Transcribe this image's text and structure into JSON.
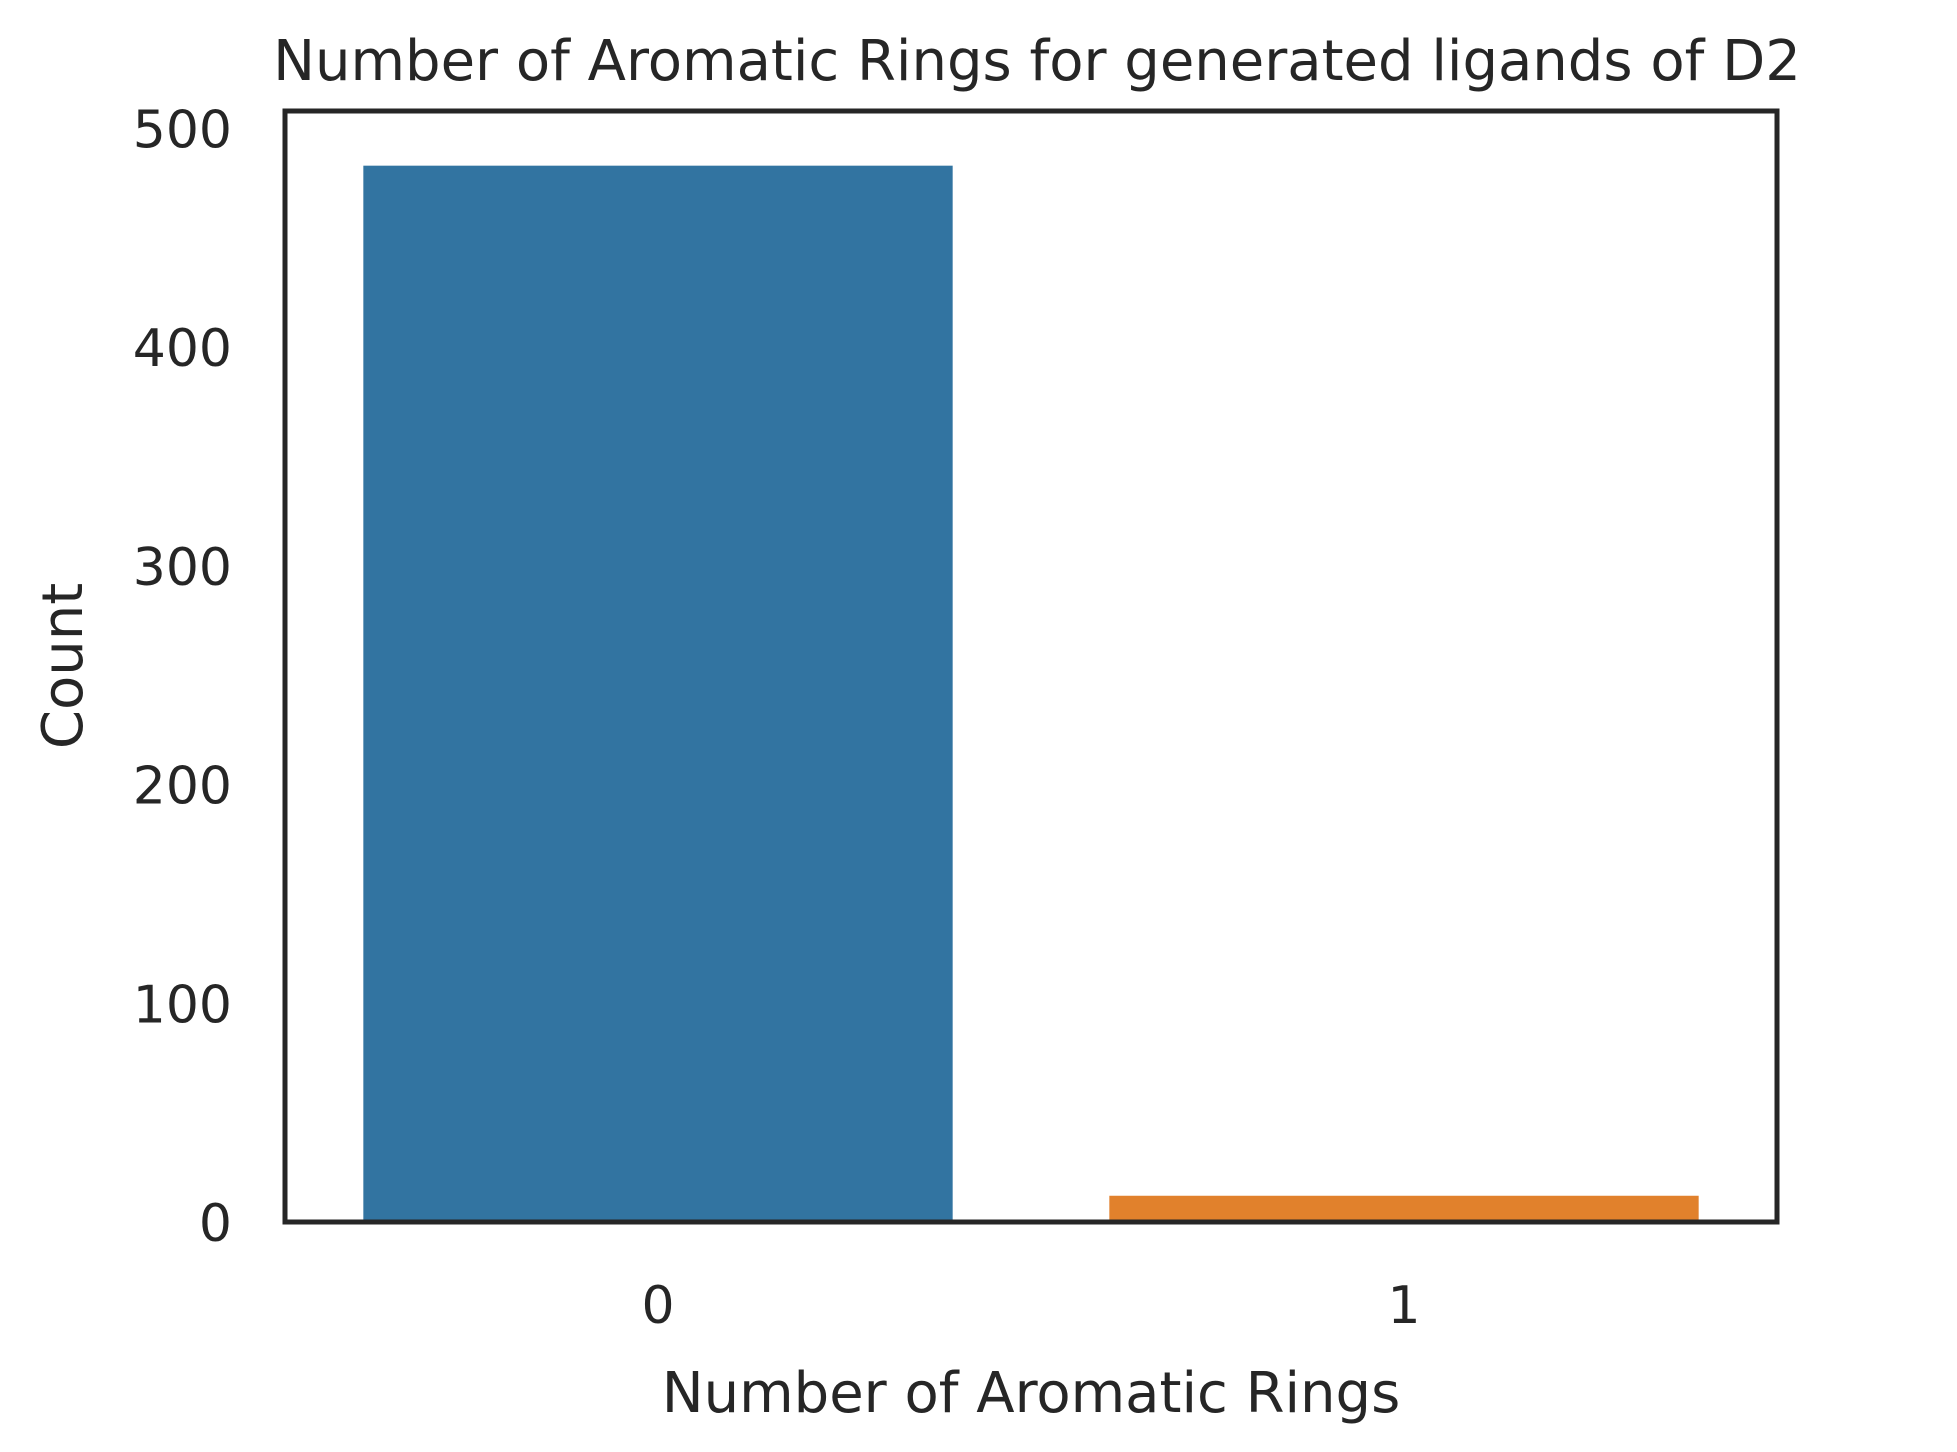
{
  "chart_data": {
    "type": "bar",
    "title": "Number of Aromatic Rings for generated ligands of D2",
    "xlabel": "Number of Aromatic Rings",
    "ylabel": "Count",
    "categories": [
      "0",
      "1"
    ],
    "values": [
      483,
      12
    ],
    "ylim": [
      0,
      508
    ],
    "yticks": [
      0,
      100,
      200,
      300,
      400,
      500
    ],
    "colors": [
      "#3274a1",
      "#e1812c"
    ],
    "grid": false,
    "legend": "none"
  }
}
